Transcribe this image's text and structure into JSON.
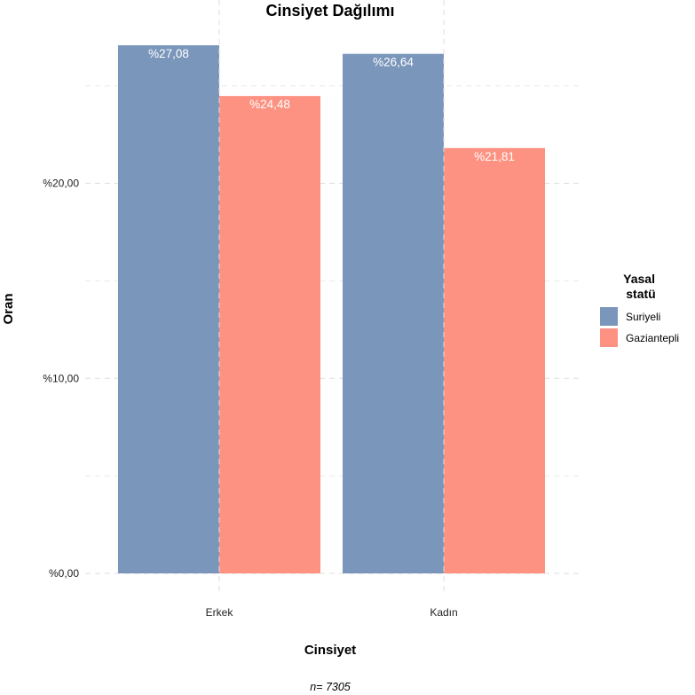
{
  "chart_data": {
    "type": "bar",
    "title": "Cinsiyet Dağılımı",
    "xlabel": "Cinsiyet",
    "ylabel": "Oran",
    "categories": [
      "Erkek",
      "Kadın"
    ],
    "series": [
      {
        "name": "Suriyeli",
        "color": "#7b96bb",
        "values": [
          27.08,
          26.64
        ],
        "labels": [
          "%27,08",
          "%26,64"
        ]
      },
      {
        "name": "Gaziantepli",
        "color": "#fd9282",
        "values": [
          24.48,
          21.81
        ],
        "labels": [
          "%24,48",
          "%21,81"
        ]
      }
    ],
    "ylim": [
      0,
      27.08
    ],
    "yticks": [
      {
        "value": 0,
        "label": "%0,00"
      },
      {
        "value": 10,
        "label": "%10,00"
      },
      {
        "value": 20,
        "label": "%20,00"
      }
    ],
    "grid": true,
    "legend": {
      "title": "Yasal statü",
      "title_lines": [
        "Yasal",
        "statü"
      ],
      "position": "right"
    },
    "caption": "n= 7305"
  }
}
